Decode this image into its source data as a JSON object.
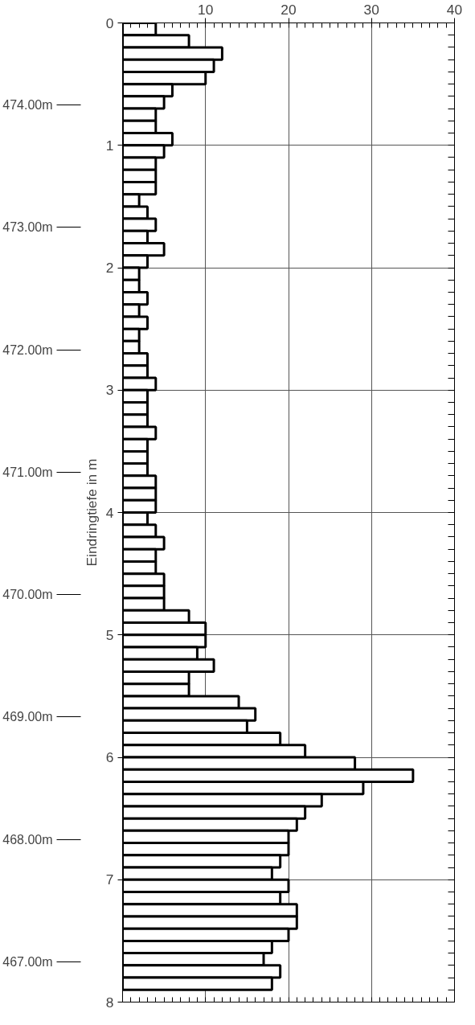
{
  "chart_data": {
    "type": "histogram",
    "orientation": "horizontal",
    "ylabel": "Eindringtiefe in m",
    "bins": [
      0,
      0.1,
      0.2,
      0.3,
      0.4,
      0.5,
      0.6,
      0.7,
      0.8,
      0.9,
      1.0,
      1.1,
      1.2,
      1.3,
      1.4,
      1.5,
      1.6,
      1.7,
      1.8,
      1.9,
      2.0,
      2.1,
      2.2,
      2.3,
      2.4,
      2.5,
      2.6,
      2.7,
      2.8,
      2.9,
      3.0,
      3.1,
      3.2,
      3.3,
      3.4,
      3.5,
      3.6,
      3.7,
      3.8,
      3.9,
      4.0,
      4.1,
      4.2,
      4.3,
      4.4,
      4.5,
      4.6,
      4.7,
      4.8,
      4.9,
      5.0,
      5.1,
      5.2,
      5.3,
      5.4,
      5.5,
      5.6,
      5.7,
      5.8,
      5.9,
      6.0,
      6.1,
      6.2,
      6.3,
      6.4,
      6.5,
      6.6,
      6.7,
      6.8,
      6.9,
      7.0,
      7.1,
      7.2,
      7.3,
      7.4,
      7.5,
      7.6,
      7.7,
      7.8,
      7.9
    ],
    "values": [
      4,
      8,
      12,
      11,
      10,
      6,
      5,
      4,
      4,
      6,
      5,
      4,
      4,
      4,
      2,
      3,
      4,
      3,
      5,
      3,
      2,
      2,
      3,
      2,
      3,
      2,
      2,
      3,
      3,
      4,
      3,
      3,
      3,
      4,
      3,
      3,
      3,
      4,
      4,
      4,
      3,
      4,
      5,
      4,
      4,
      5,
      5,
      5,
      8,
      10,
      10,
      9,
      11,
      8,
      8,
      14,
      16,
      15,
      19,
      22,
      28,
      35,
      29,
      24,
      22,
      21,
      20,
      20,
      19,
      18,
      20,
      19,
      21,
      21,
      20,
      18,
      17,
      19,
      18
    ],
    "color": "#ffffff",
    "xlim": [
      0,
      40
    ],
    "xticks": [
      10,
      20,
      30,
      40
    ],
    "ylim": [
      8,
      0
    ],
    "yticks": [
      0,
      1,
      2,
      3,
      4,
      5,
      6,
      7,
      8
    ],
    "y2lim": [
      466.67,
      474.67
    ],
    "y2ticks": [
      {
        "value": 474,
        "label": "474.00m"
      },
      {
        "value": 473,
        "label": "473.00m"
      },
      {
        "value": 472,
        "label": "472.00m"
      },
      {
        "value": 471,
        "label": "471.00m"
      },
      {
        "value": 470,
        "label": "470.00m"
      },
      {
        "value": 469,
        "label": "469.00m"
      },
      {
        "value": 468,
        "label": "468.00m"
      },
      {
        "value": 467,
        "label": "467.00m"
      }
    ],
    "grid": true
  }
}
